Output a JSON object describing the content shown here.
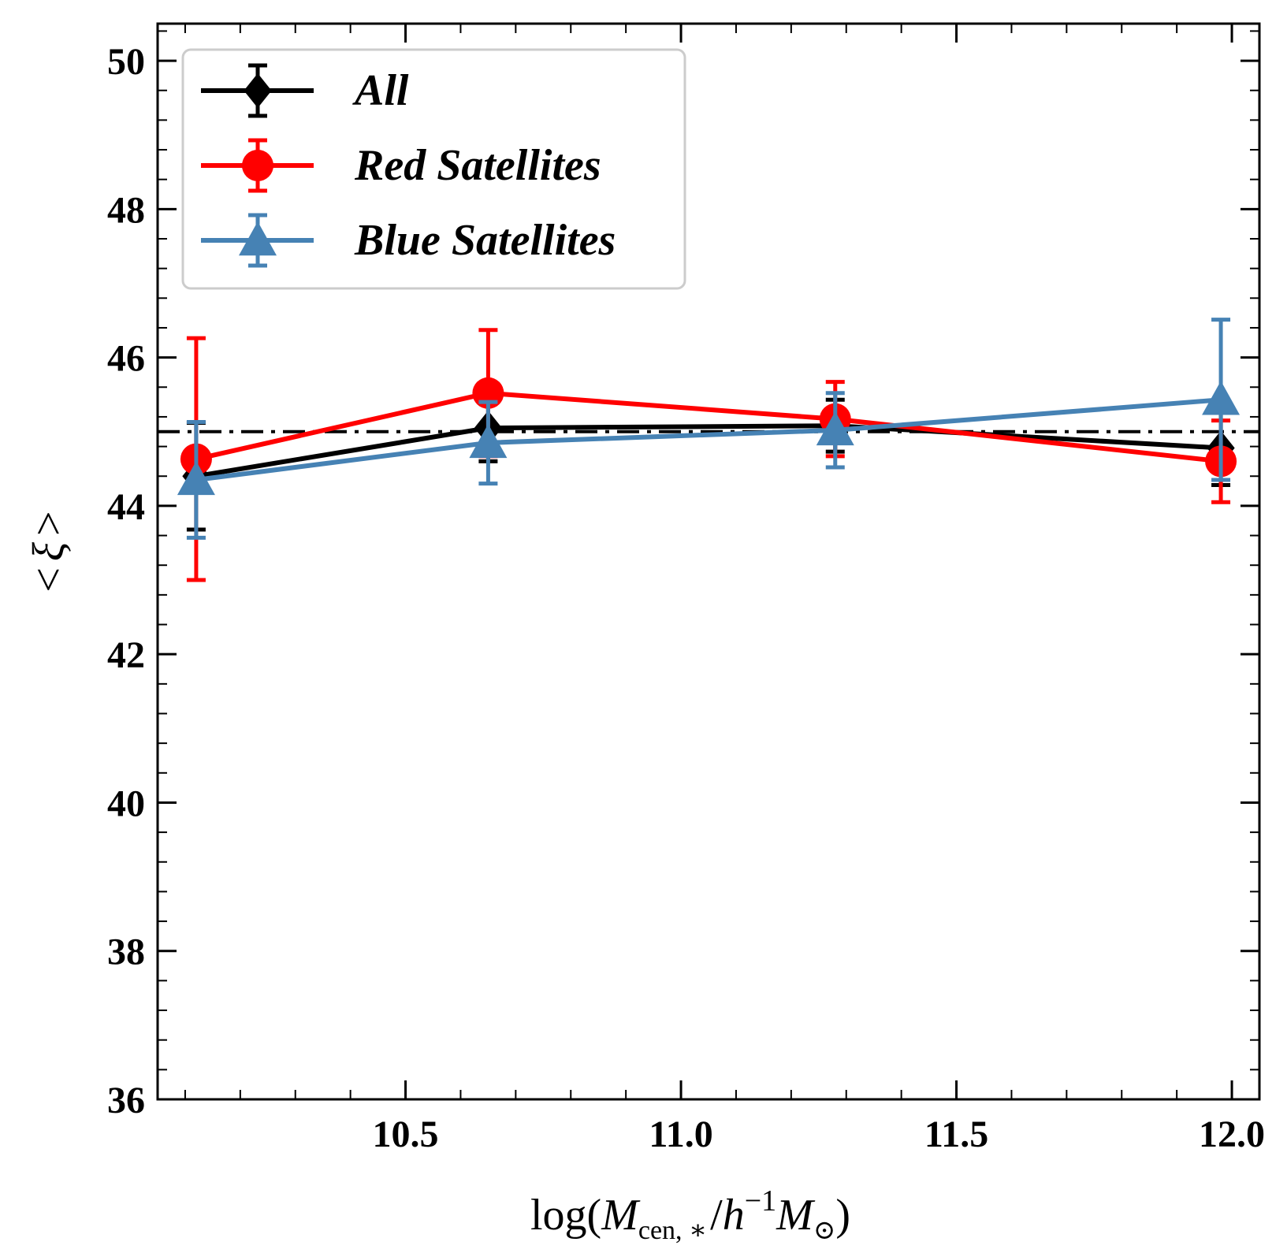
{
  "chart_data": {
    "type": "line",
    "title": "",
    "xlabel": "log(M_cen,*/h^-1 M_sun)",
    "xlabel_parts": {
      "pre": "log(",
      "M1": "M",
      "sub": "cen, ∗",
      "slash": "/",
      "h": "h",
      "sup": "−1",
      "M2": "M",
      "sun": "⊙",
      "post": ")"
    },
    "ylabel": "<ξ>",
    "ylabel_parts": {
      "lt": "<",
      "xi": "ξ",
      "gt": ">"
    },
    "xlim": [
      10.05,
      12.05
    ],
    "ylim": [
      36,
      50.5
    ],
    "xticks": [
      10.5,
      11.0,
      11.5,
      12.0
    ],
    "xtick_labels": [
      "10.5",
      "11.0",
      "11.5",
      "12.0"
    ],
    "x_minor_step": 0.1,
    "yticks": [
      36,
      38,
      40,
      42,
      44,
      46,
      48,
      50
    ],
    "ytick_labels": [
      "36",
      "38",
      "40",
      "42",
      "44",
      "46",
      "48",
      "50"
    ],
    "y_minor_step": 0.4,
    "reference_line": {
      "y": 45,
      "style": "dash-dot",
      "color": "#000000"
    },
    "legend_position": "upper-left",
    "series": [
      {
        "name": "All",
        "label": "All",
        "color": "#000000",
        "marker": "diamond",
        "x": [
          10.12,
          10.65,
          11.28,
          11.98
        ],
        "y": [
          44.4,
          45.05,
          45.08,
          44.78
        ],
        "yerr": [
          0.72,
          0.45,
          0.35,
          0.5
        ]
      },
      {
        "name": "Red Satellites",
        "label": "Red Satellites",
        "color": "#ff0000",
        "marker": "circle",
        "x": [
          10.12,
          10.65,
          11.28,
          11.98
        ],
        "y": [
          44.63,
          45.52,
          45.17,
          44.6
        ],
        "yerr": [
          1.63,
          0.85,
          0.5,
          0.55
        ]
      },
      {
        "name": "Blue Satellites",
        "label": "Blue Satellites",
        "color": "#4682b4",
        "marker": "triangle",
        "x": [
          10.12,
          10.65,
          11.28,
          11.98
        ],
        "y": [
          44.35,
          44.85,
          45.02,
          45.43
        ],
        "yerr": [
          0.78,
          0.55,
          0.5,
          1.08
        ]
      }
    ]
  }
}
